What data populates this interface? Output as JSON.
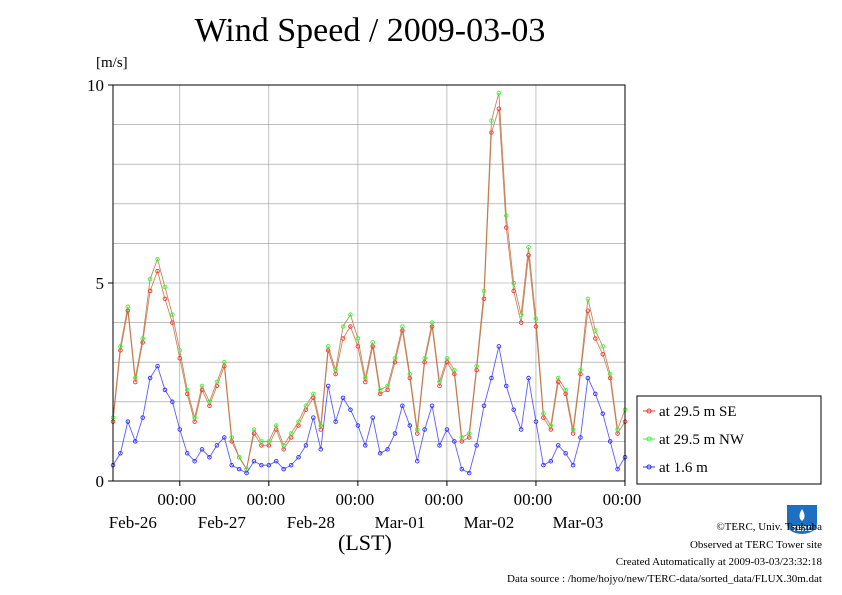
{
  "title": "Wind Speed / 2009-03-03",
  "y_unit": "[m/s]",
  "x_label": "(LST)",
  "credits": [
    "©TERC, Univ. Tsukuba",
    "Observed at TERC Tower site",
    "Created Automatically at 2009-03-03/23:32:18",
    "Data source : /home/hojyo/new/TERC-data/sorted_data/FLUX.30m.dat"
  ],
  "logo_text": "TERC",
  "chart_data": {
    "type": "line",
    "title": "Wind Speed / 2009-03-03",
    "ylabel": "[m/s]",
    "xlabel": "(LST)",
    "ylim": [
      0,
      10
    ],
    "y_ticks": [
      "0",
      "5",
      "10"
    ],
    "x_ticks": [
      {
        "time": "00:00",
        "date": "Feb-26"
      },
      {
        "time": "00:00",
        "date": "Feb-27"
      },
      {
        "time": "00:00",
        "date": "Feb-28"
      },
      {
        "time": "00:00",
        "date": "Mar-01"
      },
      {
        "time": "00:00",
        "date": "Mar-02"
      },
      {
        "time": "00:00",
        "date": "Mar-03"
      }
    ],
    "x_unit": "hours from 2009-02-25 06:00 LST",
    "xlim": [
      0,
      138
    ],
    "grid": true,
    "legend_position": "right",
    "series": [
      {
        "name": "at 29.5 m SE",
        "color": "#ff3030",
        "x": [
          0,
          2,
          4,
          6,
          8,
          10,
          12,
          14,
          16,
          18,
          20,
          22,
          24,
          26,
          28,
          30,
          32,
          34,
          36,
          38,
          40,
          42,
          44,
          46,
          48,
          50,
          52,
          54,
          56,
          58,
          60,
          62,
          64,
          66,
          68,
          70,
          72,
          74,
          76,
          78,
          80,
          82,
          84,
          86,
          88,
          90,
          92,
          94,
          96,
          98,
          100,
          102,
          104,
          106,
          108,
          110,
          112,
          114,
          116,
          118,
          120,
          122,
          124,
          126,
          128,
          130,
          132,
          134,
          136,
          138
        ],
        "values": [
          1.5,
          3.3,
          4.3,
          2.5,
          3.5,
          4.8,
          5.3,
          4.6,
          4.0,
          3.1,
          2.2,
          1.5,
          2.3,
          1.9,
          2.4,
          2.9,
          1.0,
          0.6,
          0.3,
          1.2,
          0.9,
          0.9,
          1.3,
          0.8,
          1.1,
          1.4,
          1.8,
          2.1,
          1.3,
          3.3,
          2.7,
          3.6,
          3.9,
          3.4,
          2.5,
          3.4,
          2.2,
          2.3,
          3.0,
          3.8,
          2.6,
          1.2,
          3.0,
          3.9,
          2.4,
          3.0,
          2.7,
          1.0,
          1.1,
          2.8,
          4.6,
          8.8,
          9.4,
          6.4,
          4.8,
          4.0,
          5.7,
          3.9,
          1.6,
          1.3,
          2.5,
          2.2,
          1.2,
          2.7,
          4.3,
          3.6,
          3.2,
          2.6,
          1.2,
          1.5
        ]
      },
      {
        "name": "at 29.5 m NW",
        "color": "#30ff30",
        "x": [
          0,
          2,
          4,
          6,
          8,
          10,
          12,
          14,
          16,
          18,
          20,
          22,
          24,
          26,
          28,
          30,
          32,
          34,
          36,
          38,
          40,
          42,
          44,
          46,
          48,
          50,
          52,
          54,
          56,
          58,
          60,
          62,
          64,
          66,
          68,
          70,
          72,
          74,
          76,
          78,
          80,
          82,
          84,
          86,
          88,
          90,
          92,
          94,
          96,
          98,
          100,
          102,
          104,
          106,
          108,
          110,
          112,
          114,
          116,
          118,
          120,
          122,
          124,
          126,
          128,
          130,
          132,
          134,
          136,
          138
        ],
        "values": [
          1.6,
          3.4,
          4.4,
          2.6,
          3.6,
          5.1,
          5.6,
          4.9,
          4.2,
          3.3,
          2.3,
          1.6,
          2.4,
          2.0,
          2.5,
          3.0,
          1.1,
          0.6,
          0.3,
          1.3,
          1.0,
          1.0,
          1.4,
          0.9,
          1.2,
          1.5,
          1.9,
          2.2,
          1.4,
          3.4,
          2.8,
          3.9,
          4.2,
          3.6,
          2.6,
          3.5,
          2.3,
          2.4,
          3.1,
          3.9,
          2.7,
          1.3,
          3.1,
          4.0,
          2.5,
          3.1,
          2.8,
          1.1,
          1.2,
          2.9,
          4.8,
          9.1,
          9.8,
          6.7,
          5.0,
          4.2,
          5.9,
          4.1,
          1.7,
          1.4,
          2.6,
          2.3,
          1.3,
          2.8,
          4.6,
          3.8,
          3.4,
          2.7,
          1.3,
          1.8
        ]
      },
      {
        "name": "at 1.6 m",
        "color": "#3030ff",
        "x": [
          0,
          2,
          4,
          6,
          8,
          10,
          12,
          14,
          16,
          18,
          20,
          22,
          24,
          26,
          28,
          30,
          32,
          34,
          36,
          38,
          40,
          42,
          44,
          46,
          48,
          50,
          52,
          54,
          56,
          58,
          60,
          62,
          64,
          66,
          68,
          70,
          72,
          74,
          76,
          78,
          80,
          82,
          84,
          86,
          88,
          90,
          92,
          94,
          96,
          98,
          100,
          102,
          104,
          106,
          108,
          110,
          112,
          114,
          116,
          118,
          120,
          122,
          124,
          126,
          128,
          130,
          132,
          134,
          136,
          138
        ],
        "values": [
          0.4,
          0.7,
          1.5,
          1.0,
          1.6,
          2.6,
          2.9,
          2.3,
          2.0,
          1.3,
          0.7,
          0.5,
          0.8,
          0.6,
          0.9,
          1.1,
          0.4,
          0.3,
          0.2,
          0.5,
          0.4,
          0.4,
          0.5,
          0.3,
          0.4,
          0.6,
          0.9,
          1.6,
          0.8,
          2.4,
          1.5,
          2.1,
          1.8,
          1.4,
          0.9,
          1.6,
          0.7,
          0.8,
          1.2,
          1.9,
          1.4,
          0.5,
          1.3,
          1.9,
          0.9,
          1.3,
          1.0,
          0.3,
          0.2,
          0.9,
          1.9,
          2.6,
          3.4,
          2.4,
          1.8,
          1.3,
          2.6,
          1.5,
          0.4,
          0.5,
          0.9,
          0.7,
          0.4,
          1.1,
          2.6,
          2.2,
          1.7,
          1.0,
          0.3,
          0.6
        ]
      }
    ]
  }
}
